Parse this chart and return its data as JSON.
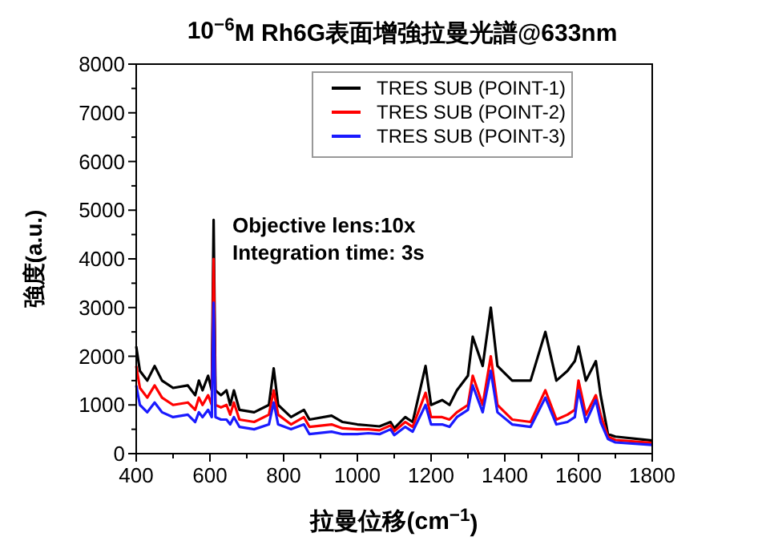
{
  "chart_data": {
    "type": "line",
    "title": "10$^{−6}$M Rh6G表面增強拉曼光譜@633nm",
    "xlabel": "拉曼位移(cm$^{−1}$)",
    "ylabel": "強度(a.u.)",
    "x": [
      400,
      410,
      430,
      450,
      470,
      500,
      540,
      560,
      570,
      580,
      595,
      605,
      610,
      615,
      630,
      645,
      655,
      665,
      680,
      720,
      760,
      773,
      785,
      820,
      855,
      870,
      930,
      960,
      1000,
      1030,
      1060,
      1090,
      1100,
      1130,
      1150,
      1185,
      1200,
      1230,
      1250,
      1270,
      1300,
      1313,
      1340,
      1362,
      1380,
      1420,
      1470,
      1510,
      1540,
      1570,
      1590,
      1600,
      1620,
      1647,
      1660,
      1680,
      1700,
      1800
    ],
    "series": [
      {
        "name": "TRES SUB (POINT-1)",
        "color": "#000000",
        "values": [
          2200,
          1700,
          1500,
          1800,
          1500,
          1350,
          1400,
          1200,
          1500,
          1300,
          1600,
          1300,
          4800,
          1300,
          1200,
          1300,
          1000,
          1300,
          900,
          850,
          1000,
          1750,
          1000,
          750,
          900,
          700,
          780,
          650,
          600,
          580,
          560,
          650,
          520,
          750,
          650,
          1800,
          1000,
          1100,
          1000,
          1300,
          1600,
          2400,
          1800,
          3000,
          1800,
          1500,
          1500,
          2500,
          1500,
          1700,
          1900,
          2200,
          1500,
          1900,
          1200,
          400,
          350,
          270
        ]
      },
      {
        "name": "TRES SUB (POINT-2)",
        "color": "#ff0000",
        "values": [
          1800,
          1350,
          1150,
          1400,
          1150,
          1000,
          1050,
          900,
          1150,
          1000,
          1200,
          1000,
          4000,
          1000,
          950,
          1000,
          800,
          1050,
          700,
          650,
          800,
          1300,
          800,
          600,
          750,
          550,
          600,
          520,
          500,
          500,
          480,
          580,
          460,
          650,
          550,
          1250,
          750,
          750,
          700,
          850,
          1000,
          1600,
          1000,
          2000,
          1000,
          700,
          650,
          1300,
          700,
          800,
          900,
          1500,
          800,
          1200,
          800,
          350,
          280,
          220
        ]
      },
      {
        "name": "TRES SUB (POINT-3)",
        "color": "#1a1aff",
        "values": [
          1400,
          1000,
          850,
          1050,
          850,
          750,
          800,
          650,
          850,
          750,
          900,
          750,
          3100,
          750,
          700,
          700,
          600,
          750,
          550,
          500,
          600,
          1050,
          600,
          500,
          600,
          400,
          450,
          400,
          400,
          420,
          400,
          500,
          380,
          550,
          450,
          1000,
          600,
          600,
          550,
          750,
          900,
          1400,
          850,
          1700,
          850,
          600,
          550,
          1150,
          600,
          650,
          750,
          1300,
          650,
          1100,
          650,
          300,
          230,
          180
        ]
      }
    ],
    "xlim": [
      400,
      1800
    ],
    "xticks": [
      400,
      {
        "value": 500,
        "label": null
      },
      600,
      {
        "value": 700,
        "label": null
      },
      800,
      {
        "value": 900,
        "label": null
      },
      1000,
      {
        "value": 1100,
        "label": null
      },
      1200,
      {
        "value": 1300,
        "label": null
      },
      1400,
      {
        "value": 1500,
        "label": null
      },
      1600,
      {
        "value": 1700,
        "label": null
      },
      1800
    ],
    "ylim": [
      0,
      8000
    ],
    "yticks": [
      0,
      {
        "value": 500,
        "label": null
      },
      1000,
      {
        "value": 1500,
        "label": null
      },
      2000,
      {
        "value": 2500,
        "label": null
      },
      3000,
      {
        "value": 3500,
        "label": null
      },
      4000,
      {
        "value": 4500,
        "label": null
      },
      5000,
      {
        "value": 5500,
        "label": null
      },
      6000,
      {
        "value": 6500,
        "label": null
      },
      7000,
      {
        "value": 7500,
        "label": null
      },
      8000
    ],
    "annotations": [
      "Objective lens:10x",
      "Integration time: 3s"
    ],
    "legend": "top",
    "grid": false
  }
}
